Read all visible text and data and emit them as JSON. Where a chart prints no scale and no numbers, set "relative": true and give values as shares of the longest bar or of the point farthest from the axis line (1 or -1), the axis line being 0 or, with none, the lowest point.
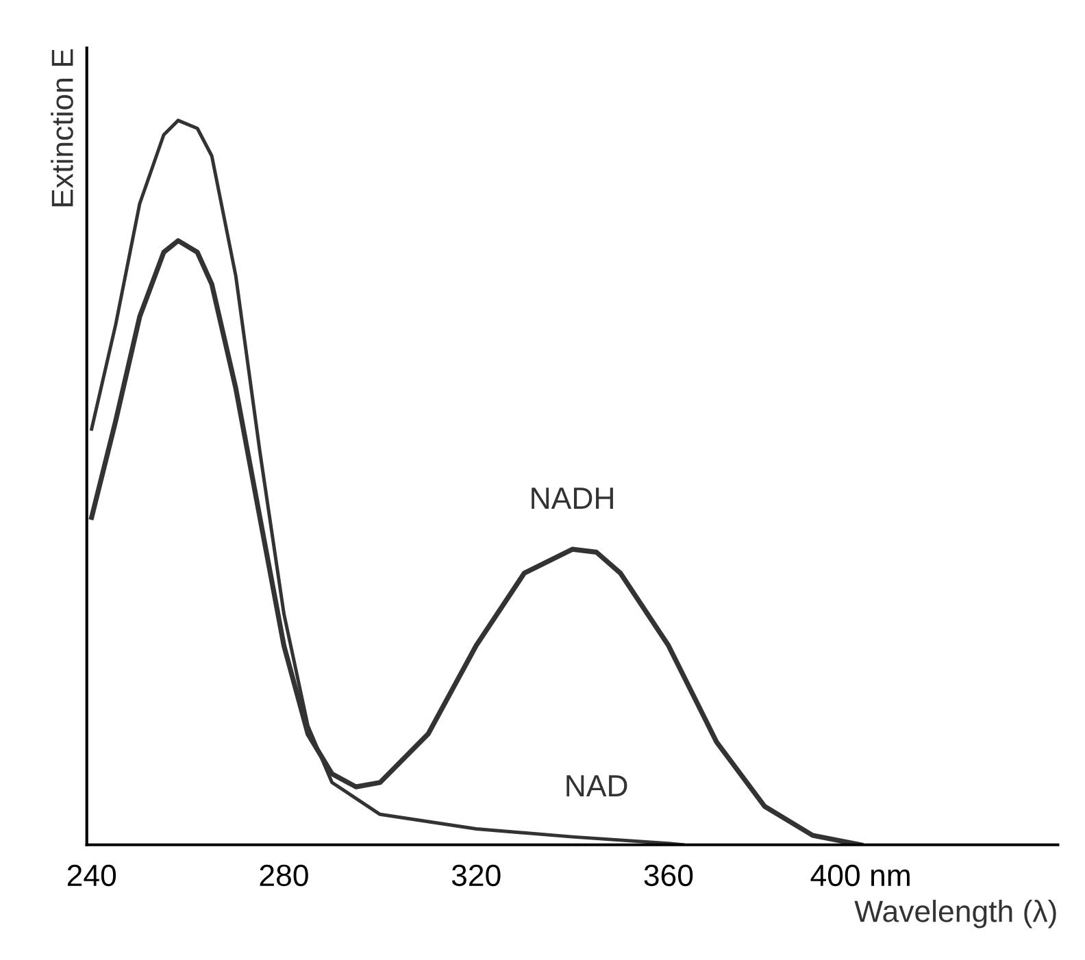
{
  "chart_data": {
    "type": "line",
    "relative": true,
    "xlabel": "Wavelength (λ)",
    "ylabel": "Extinction E",
    "xlim": [
      239,
      441
    ],
    "xticks": [
      240,
      280,
      320,
      360,
      {
        "value": 400,
        "label": "400 nm"
      }
    ],
    "tick_labels": "x",
    "grid": false,
    "marker": "none",
    "line_style": "solid",
    "series": [
      {
        "color": "#333333",
        "x": [
          240,
          245,
          250,
          255,
          258,
          262,
          265,
          270,
          275,
          280,
          285,
          290,
          300,
          320,
          340,
          360,
          363
        ],
        "values": [
          0.574,
          0.718,
          0.885,
          0.98,
          1.0,
          0.989,
          0.951,
          0.785,
          0.543,
          0.319,
          0.164,
          0.086,
          0.042,
          0.022,
          0.011,
          0.002,
          0
        ]
      },
      {
        "color": "#333333",
        "x": [
          240,
          245,
          250,
          255,
          258,
          262,
          265,
          270,
          275,
          280,
          285,
          290,
          295,
          300,
          310,
          320,
          330,
          340,
          345,
          350,
          360,
          370,
          380,
          390,
          400
        ],
        "values": [
          0.452,
          0.585,
          0.729,
          0.818,
          0.834,
          0.818,
          0.774,
          0.63,
          0.452,
          0.275,
          0.153,
          0.098,
          0.08,
          0.086,
          0.153,
          0.275,
          0.375,
          0.408,
          0.404,
          0.375,
          0.275,
          0.142,
          0.053,
          0.013,
          0
        ]
      }
    ],
    "annotations": [
      {
        "text": "NADH",
        "x": 340,
        "y": 0.408
      },
      {
        "text": "NAD",
        "x": 345,
        "y": 0.011
      }
    ]
  }
}
